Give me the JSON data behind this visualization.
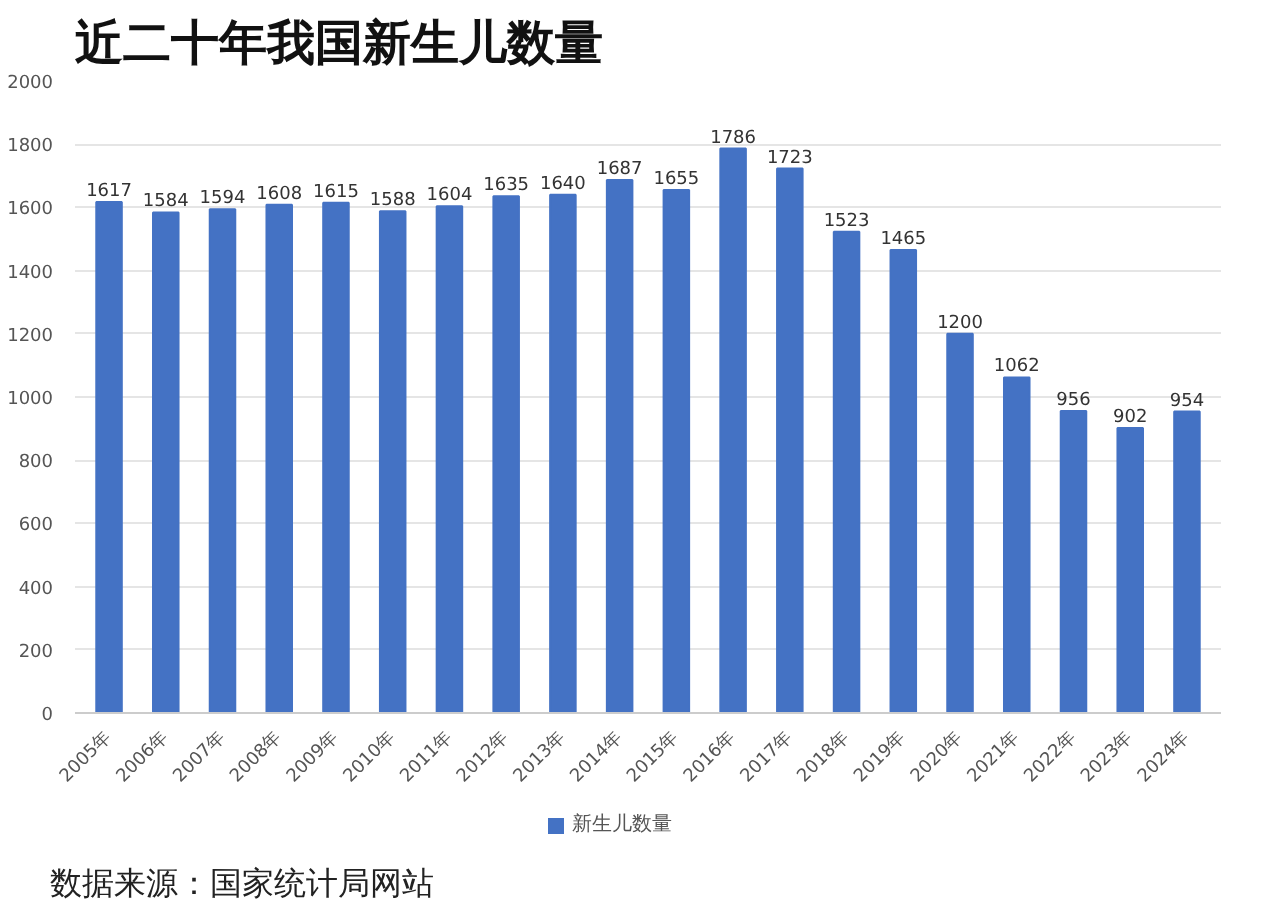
{
  "chart_data": {
    "type": "bar",
    "title": "近二十年我国新生儿数量",
    "categories": [
      "2005年",
      "2006年",
      "2007年",
      "2008年",
      "2009年",
      "2010年",
      "2011年",
      "2012年",
      "2013年",
      "2014年",
      "2015年",
      "2016年",
      "2017年",
      "2018年",
      "2019年",
      "2020年",
      "2021年",
      "2022年",
      "2023年",
      "2024年"
    ],
    "series": [
      {
        "name": "新生儿数量",
        "color": "#4472c4",
        "values": [
          1617,
          1584,
          1594,
          1608,
          1615,
          1588,
          1604,
          1635,
          1640,
          1687,
          1655,
          1786,
          1723,
          1523,
          1465,
          1200,
          1062,
          956,
          902,
          954
        ]
      }
    ],
    "ylim": [
      0,
      2000
    ],
    "yticks": [
      0,
      200,
      400,
      600,
      800,
      1000,
      1200,
      1400,
      1600,
      1800,
      2000
    ],
    "grid": "y",
    "legend": "bottom",
    "data_labels": true,
    "annotations": [
      "数据来源：国家统计局网站"
    ]
  }
}
